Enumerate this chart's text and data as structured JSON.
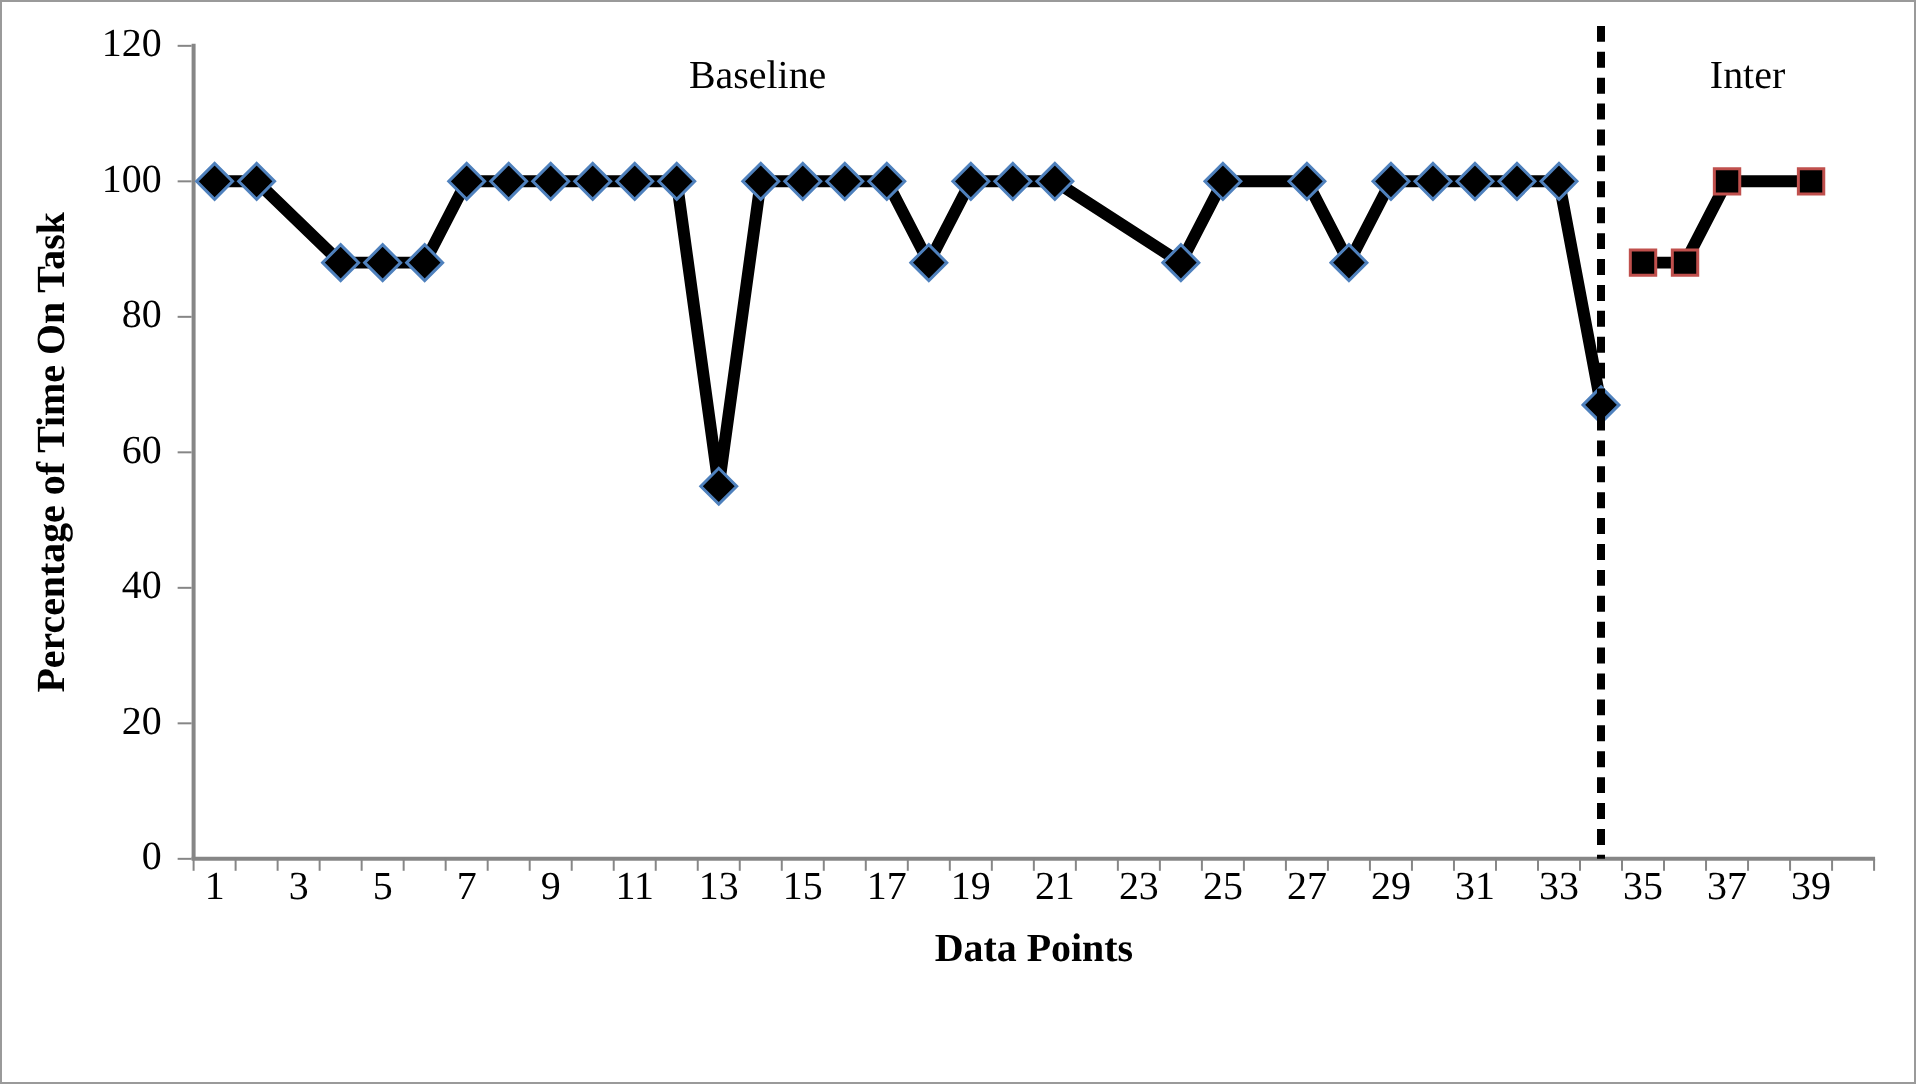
{
  "chart_data": {
    "type": "line",
    "xlabel": "Data Points",
    "ylabel": "Percentage of Time On Task",
    "annotations": [
      "Baseline",
      "Inter"
    ],
    "xlim": [
      0.5,
      40.5
    ],
    "xticks": [
      1,
      3,
      5,
      7,
      9,
      11,
      13,
      15,
      17,
      19,
      21,
      23,
      25,
      27,
      29,
      31,
      33,
      35,
      37,
      39
    ],
    "ylim": [
      0,
      120
    ],
    "yticks": [
      0,
      20,
      40,
      60,
      80,
      100,
      120
    ],
    "grid": false,
    "legend": false,
    "line_style": "solid",
    "series": [
      {
        "color": "#000000",
        "marker": "diamond",
        "x": [
          1,
          2,
          4,
          5,
          6,
          7,
          8,
          9,
          10,
          11,
          12,
          13,
          14,
          15,
          16,
          17,
          18,
          19,
          20,
          21,
          24,
          25,
          27,
          28,
          29,
          30,
          31,
          32,
          33,
          34
        ],
        "values": [
          100,
          100,
          88,
          88,
          88,
          100,
          100,
          100,
          100,
          100,
          100,
          55,
          100,
          100,
          100,
          100,
          88,
          100,
          100,
          100,
          88,
          100,
          100,
          88,
          100,
          100,
          100,
          100,
          100,
          67
        ]
      },
      {
        "color": "#000000",
        "marker": "square",
        "x": [
          35,
          36,
          37,
          39
        ],
        "values": [
          88,
          88,
          100,
          100
        ]
      }
    ],
    "ref_lines": [
      {
        "axis": "x",
        "value": 34,
        "color": "#000000",
        "line_style": "dashed"
      }
    ]
  }
}
